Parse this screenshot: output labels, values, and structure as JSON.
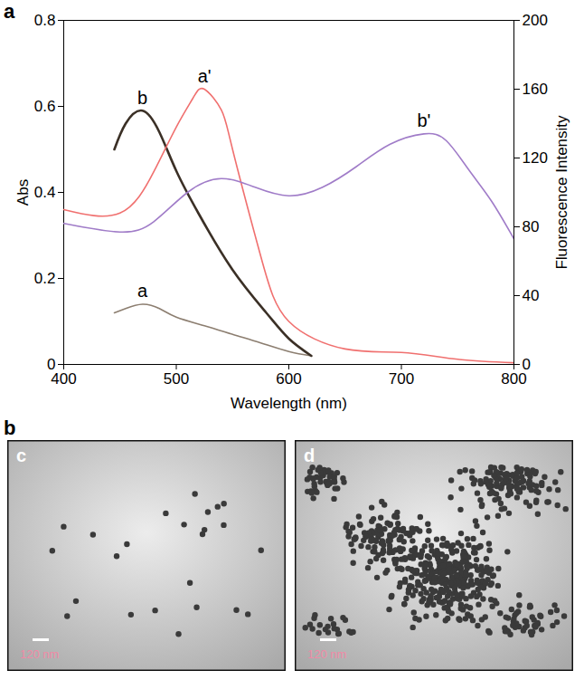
{
  "chart_data": {
    "type": "line",
    "panel_label": "a",
    "xlabel": "Wavelength (nm)",
    "ylabel": "Abs",
    "y2label": "Fluorescence Intensity",
    "xlim": [
      400,
      800
    ],
    "xticks": [
      400,
      500,
      600,
      700,
      800
    ],
    "ylim": [
      0,
      0.8
    ],
    "yticks": [
      0,
      0.2,
      0.4,
      0.6,
      0.8
    ],
    "y2lim": [
      0,
      200
    ],
    "y2ticks": [
      0,
      40,
      80,
      120,
      160,
      200
    ],
    "series": [
      {
        "name": "a",
        "color": "#8c7e70",
        "axis": "y",
        "x": [
          445,
          455,
          470,
          485,
          500,
          525,
          550,
          575,
          600,
          620
        ],
        "values": [
          0.12,
          0.13,
          0.14,
          0.13,
          0.11,
          0.09,
          0.07,
          0.05,
          0.03,
          0.02
        ]
      },
      {
        "name": "b",
        "color": "#3b3026",
        "axis": "y",
        "x": [
          445,
          455,
          470,
          485,
          500,
          520,
          550,
          580,
          600,
          620
        ],
        "values": [
          0.5,
          0.56,
          0.59,
          0.54,
          0.45,
          0.35,
          0.22,
          0.12,
          0.06,
          0.02
        ]
      },
      {
        "name": "a'",
        "color": "#f0706f",
        "axis": "y2",
        "x": [
          400,
          450,
          480,
          500,
          515,
          525,
          540,
          550,
          575,
          600,
          650,
          700,
          750,
          800
        ],
        "values": [
          90,
          88,
          112,
          138,
          155,
          160,
          148,
          125,
          63,
          25,
          9,
          7,
          3,
          1
        ]
      },
      {
        "name": "b'",
        "color": "#a07cc8",
        "axis": "y2",
        "x": [
          400,
          450,
          480,
          510,
          540,
          570,
          600,
          630,
          660,
          690,
          720,
          740,
          760,
          780,
          800
        ],
        "values": [
          82,
          77,
          83,
          100,
          108,
          103,
          98,
          103,
          115,
          128,
          134,
          130,
          113,
          95,
          73
        ]
      }
    ]
  },
  "panel_b": {
    "label": "b",
    "images": [
      {
        "label": "c",
        "scale_bar": "120 nm"
      },
      {
        "label": "d",
        "scale_bar": "120 nm"
      }
    ]
  }
}
